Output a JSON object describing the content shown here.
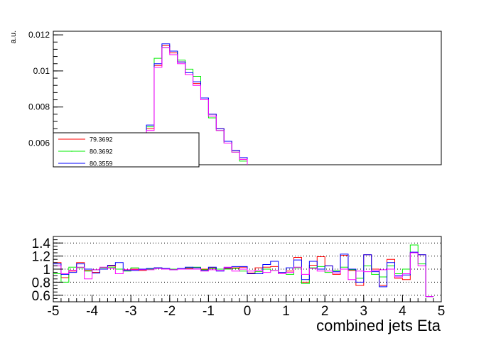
{
  "chart_data": [
    {
      "type": "line",
      "ylabel": "a.u.",
      "xlabel": "",
      "ylim": [
        0.0048,
        0.0122
      ],
      "xlim": [
        -5,
        5
      ],
      "yticks": [
        "0.006",
        "0.008",
        "0.01",
        "0.012"
      ],
      "yticks_values": [
        0.006,
        0.008,
        0.01,
        0.012
      ],
      "bin_edges": [
        -2.6,
        -2.4,
        -2.2,
        -2.0,
        -1.8,
        -1.6,
        -1.4,
        -1.2,
        -1.0,
        -0.8,
        -0.6,
        -0.4,
        -0.2,
        0.0
      ],
      "series": [
        {
          "name": "79.3692",
          "color": "#ff0000",
          "values": [
            0.0068,
            0.0103,
            0.0114,
            0.011,
            0.0105,
            0.0098,
            0.0093,
            0.0085,
            0.0076,
            0.0068,
            0.0061,
            0.0056,
            0.0051
          ]
        },
        {
          "name": "80.3692",
          "color": "#00ee00",
          "values": [
            0.0069,
            0.0107,
            0.0113,
            0.0111,
            0.0106,
            0.0101,
            0.0097,
            0.0085,
            0.0074,
            0.0067,
            0.006,
            0.0055,
            0.005
          ]
        },
        {
          "name": "80.3559",
          "color": "#0000ff",
          "values": [
            0.007,
            0.0104,
            0.0115,
            0.0111,
            0.0105,
            0.0099,
            0.0094,
            0.0085,
            0.0076,
            0.0068,
            0.0061,
            0.0056,
            0.0052
          ]
        },
        {
          "name": "",
          "color": "#ff00ff",
          "values": [
            0.0067,
            0.0102,
            0.0113,
            0.0109,
            0.0104,
            0.0098,
            0.0092,
            0.0084,
            0.0075,
            0.0067,
            0.006,
            0.0055,
            0.0051
          ]
        }
      ],
      "legend": {
        "placement": "bottom-left",
        "entries": [
          "79.3692",
          "80.3692",
          "80.3559"
        ]
      }
    },
    {
      "type": "line",
      "xlabel": "combined jets Eta",
      "ylabel": "",
      "xlim": [
        -5,
        5
      ],
      "ylim": [
        0.5,
        1.5
      ],
      "xticks": [
        "-5",
        "-4",
        "-3",
        "-2",
        "-1",
        "0",
        "1",
        "2",
        "3",
        "4",
        "5"
      ],
      "xticks_values": [
        -5,
        -4,
        -3,
        -2,
        -1,
        0,
        1,
        2,
        3,
        4,
        5
      ],
      "yticks": [
        "0.6",
        "0.8",
        "1",
        "1.2",
        "1.4"
      ],
      "yticks_values": [
        0.6,
        0.8,
        1.0,
        1.2,
        1.4
      ],
      "grid": "horizontal dotted",
      "bin_width": 0.2,
      "series": [
        {
          "name": "",
          "color": "#ff0000",
          "values": [
            1.1,
            0.87,
            0.97,
            1.1,
            0.98,
            0.95,
            1.02,
            1.05,
            1.0,
            0.99,
            1.0,
            0.98,
            1.0,
            1.02,
            1.01,
            1.0,
            1.0,
            1.01,
            1.02,
            1.0,
            1.02,
            1.0,
            1.01,
            1.02,
            1.03,
            0.94,
            1.02,
            1.03,
            1.04,
            0.95,
            0.97,
            1.18,
            0.8,
            1.06,
            1.19,
            1.05,
            0.92,
            1.21,
            0.98,
            0.75,
            1.22,
            1.0,
            0.75,
            1.15,
            0.86,
            0.84,
            1.25,
            1.22,
            0.58
          ]
        },
        {
          "name": "",
          "color": "#00ee00",
          "values": [
            0.93,
            0.8,
            1.03,
            1.02,
            0.97,
            0.99,
            1.02,
            1.03,
            1.0,
            0.97,
            1.02,
            0.99,
            1.0,
            1.02,
            1.01,
            1.0,
            1.0,
            1.02,
            1.03,
            0.99,
            1.01,
            1.0,
            1.0,
            1.01,
            0.97,
            0.93,
            0.96,
            1.0,
            0.98,
            0.93,
            0.92,
            1.02,
            0.78,
            1.02,
            1.04,
            0.95,
            0.98,
            1.03,
            0.99,
            0.86,
            1.05,
            0.92,
            0.88,
            1.05,
            0.93,
            1.0,
            1.37,
            1.08,
            0.58
          ]
        },
        {
          "name": "",
          "color": "#0000ff",
          "values": [
            1.08,
            0.92,
            0.95,
            1.08,
            1.0,
            0.94,
            1.0,
            1.06,
            1.1,
            0.98,
            0.98,
            1.0,
            1.01,
            1.02,
            1.01,
            0.99,
            1.01,
            1.03,
            1.02,
            0.98,
            1.03,
            0.97,
            1.02,
            1.04,
            1.04,
            0.93,
            0.93,
            1.07,
            1.12,
            0.95,
            1.02,
            1.14,
            0.84,
            1.12,
            1.0,
            1.05,
            0.96,
            1.23,
            1.0,
            0.8,
            1.22,
            0.96,
            0.73,
            1.1,
            0.9,
            0.91,
            1.26,
            1.22,
            0.58
          ]
        },
        {
          "name": "",
          "color": "#ff00ff",
          "values": [
            1.05,
            0.93,
            0.98,
            1.03,
            0.85,
            0.99,
            1.03,
            1.01,
            0.93,
            0.99,
            0.99,
            0.99,
            0.99,
            1.01,
            1.0,
            0.99,
            1.0,
            1.0,
            1.0,
            0.97,
            0.99,
            0.98,
            1.03,
            0.97,
            1.0,
            0.97,
            0.98,
            0.95,
            0.98,
            0.93,
            0.95,
            1.03,
            0.92,
            1.01,
            0.97,
            0.97,
            0.94,
            1.0,
            0.84,
            0.97,
            0.96,
            0.98,
            0.99,
            1.0,
            0.88,
            0.93,
            1.25,
            1.05,
            0.58
          ]
        }
      ]
    }
  ]
}
